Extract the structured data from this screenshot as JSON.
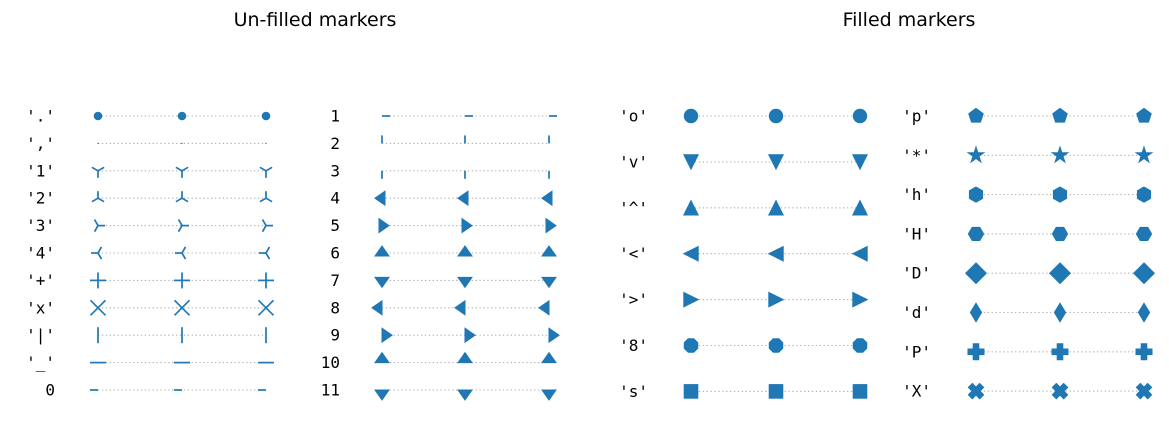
{
  "chart_data": [
    {
      "type": "scatter",
      "title": "Un-filled markers",
      "marker_color": "#1f77b4",
      "line_style": "dotted gray",
      "x": [
        0,
        1,
        2
      ],
      "columns": [
        {
          "rows": [
            {
              "label": "'.'",
              "marker": "."
            },
            {
              "label": "','",
              "marker": ","
            },
            {
              "label": "'1'",
              "marker": "1"
            },
            {
              "label": "'2'",
              "marker": "2"
            },
            {
              "label": "'3'",
              "marker": "3"
            },
            {
              "label": "'4'",
              "marker": "4"
            },
            {
              "label": "'+'",
              "marker": "+"
            },
            {
              "label": "'x'",
              "marker": "x"
            },
            {
              "label": "'|'",
              "marker": "|"
            },
            {
              "label": "'_'",
              "marker": "_"
            },
            {
              "label": "0",
              "marker": "tickleft"
            }
          ]
        },
        {
          "rows": [
            {
              "label": "1",
              "marker": "tickright"
            },
            {
              "label": "2",
              "marker": "tickup"
            },
            {
              "label": "3",
              "marker": "tickdown"
            },
            {
              "label": "4",
              "marker": "caretleft"
            },
            {
              "label": "5",
              "marker": "caretright"
            },
            {
              "label": "6",
              "marker": "caretup"
            },
            {
              "label": "7",
              "marker": "caretdown"
            },
            {
              "label": "8",
              "marker": "caretleftbase"
            },
            {
              "label": "9",
              "marker": "caretrightbase"
            },
            {
              "label": "10",
              "marker": "caretupbase"
            },
            {
              "label": "11",
              "marker": "caretdownbase"
            }
          ]
        }
      ]
    },
    {
      "type": "scatter",
      "title": "Filled markers",
      "marker_color": "#1f77b4",
      "line_style": "dotted gray",
      "x": [
        0,
        1,
        2
      ],
      "columns": [
        {
          "rows": [
            {
              "label": "'o'",
              "marker": "o"
            },
            {
              "label": "'v'",
              "marker": "v"
            },
            {
              "label": "'^'",
              "marker": "^"
            },
            {
              "label": "'<'",
              "marker": "<"
            },
            {
              "label": "'>'",
              "marker": ">"
            },
            {
              "label": "'8'",
              "marker": "8"
            },
            {
              "label": "'s'",
              "marker": "s"
            }
          ]
        },
        {
          "rows": [
            {
              "label": "'p'",
              "marker": "p"
            },
            {
              "label": "'*'",
              "marker": "*"
            },
            {
              "label": "'h'",
              "marker": "h"
            },
            {
              "label": "'H'",
              "marker": "H"
            },
            {
              "label": "'D'",
              "marker": "D"
            },
            {
              "label": "'d'",
              "marker": "d"
            },
            {
              "label": "'P'",
              "marker": "P"
            },
            {
              "label": "'X'",
              "marker": "X"
            }
          ]
        }
      ]
    }
  ]
}
